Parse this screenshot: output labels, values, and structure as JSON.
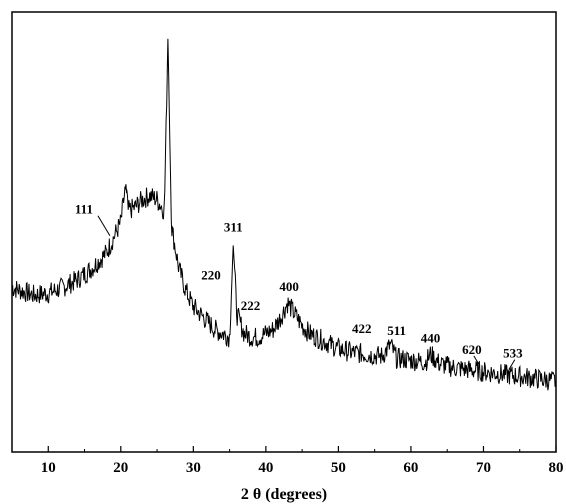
{
  "chart_data": {
    "type": "line",
    "title": "",
    "xlabel": "2 θ (degrees)",
    "ylabel": "",
    "xlim": [
      5,
      80
    ],
    "x_ticks": [
      10,
      20,
      30,
      40,
      50,
      60,
      70,
      80
    ],
    "x_tick_labels": [
      "10",
      "20",
      "30",
      "40",
      "50",
      "60",
      "70",
      "80"
    ],
    "y_ticks_shown": false,
    "grid": false,
    "legend": "none",
    "line_color": "#000000",
    "series": [
      {
        "name": "",
        "x": [
          5,
          8,
          10,
          12,
          14,
          16,
          18,
          19,
          20,
          20.7,
          21,
          22,
          23,
          24,
          25,
          26,
          26.5,
          27,
          28,
          29,
          30,
          31,
          32,
          33,
          34,
          35,
          35.5,
          36,
          37,
          38,
          39,
          40,
          41,
          42,
          43,
          44,
          45,
          46,
          48,
          50,
          52,
          54,
          56,
          57.2,
          58,
          60,
          62,
          62.7,
          64,
          66,
          68,
          70,
          72,
          74,
          76,
          78,
          80
        ],
        "y": [
          28,
          26,
          26.5,
          28,
          30,
          33,
          37,
          41,
          45,
          55,
          48,
          49,
          51,
          52,
          51,
          48,
          93,
          44,
          33,
          27,
          23,
          21,
          19,
          17,
          16,
          15,
          39,
          21,
          16,
          15,
          15,
          16,
          17,
          20,
          24,
          21,
          18,
          16,
          14,
          12,
          11,
          10.5,
          10,
          13,
          9.5,
          9,
          8.5,
          10.5,
          8,
          7,
          6.5,
          6,
          5.5,
          5,
          4.5,
          4,
          3.5
        ]
      }
    ],
    "peak_labels": [
      {
        "text": "111",
        "x": 18.5,
        "y": 41
      },
      {
        "text": "220",
        "x": 30.5,
        "y": 27
      },
      {
        "text": "311",
        "x": 35.5,
        "y": 39
      },
      {
        "text": "222",
        "x": 36.5,
        "y": 20
      },
      {
        "text": "400",
        "x": 43.2,
        "y": 24
      },
      {
        "text": "422",
        "x": 53.5,
        "y": 13
      },
      {
        "text": "511",
        "x": 57.2,
        "y": 13
      },
      {
        "text": "440",
        "x": 62.7,
        "y": 10.5
      },
      {
        "text": "620",
        "x": 69.5,
        "y": 7
      },
      {
        "text": "533",
        "x": 73.5,
        "y": 6
      }
    ]
  }
}
